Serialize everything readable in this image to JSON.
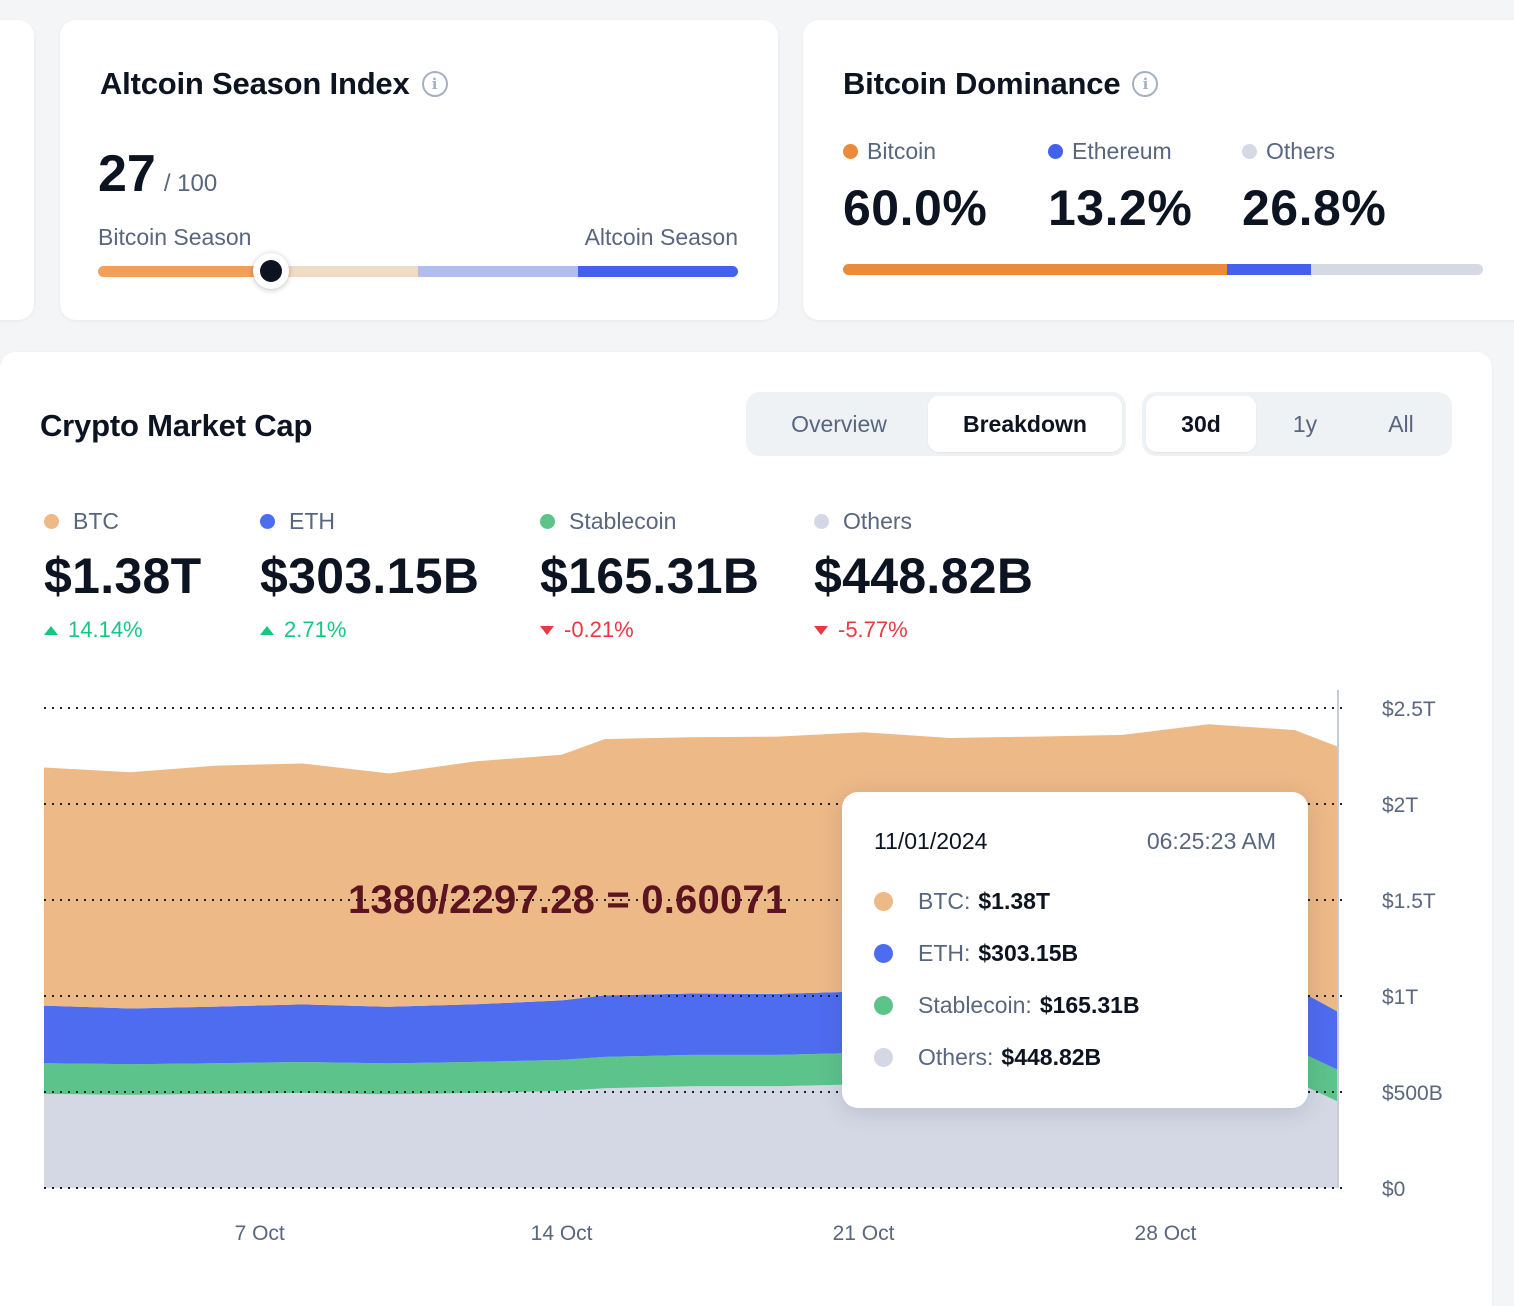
{
  "altcoin_season": {
    "title": "Altcoin Season Index",
    "value": "27",
    "max_label": "/ 100",
    "value_fraction": 0.27,
    "left_label": "Bitcoin Season",
    "right_label": "Altcoin Season",
    "bar_colors": [
      "#f0a05a",
      "#f0dcc4",
      "#b1bdf0",
      "#4361ee"
    ]
  },
  "dominance": {
    "title": "Bitcoin Dominance",
    "items": [
      {
        "label": "Bitcoin",
        "value": "60.0%",
        "color": "#ea8b3b",
        "fraction": 0.6
      },
      {
        "label": "Ethereum",
        "value": "13.2%",
        "color": "#4361ee",
        "fraction": 0.132
      },
      {
        "label": "Others",
        "value": "26.8%",
        "color": "#d4d9e3",
        "fraction": 0.268
      }
    ]
  },
  "market_cap": {
    "title": "Crypto Market Cap",
    "view_tabs": [
      {
        "label": "Overview",
        "active": false
      },
      {
        "label": "Breakdown",
        "active": true
      }
    ],
    "range_tabs": [
      {
        "label": "30d",
        "active": true
      },
      {
        "label": "1y",
        "active": false
      },
      {
        "label": "All",
        "active": false
      }
    ],
    "stats": [
      {
        "label": "BTC",
        "value": "$1.38T",
        "change": "14.14%",
        "direction": "up",
        "color": "#edb987"
      },
      {
        "label": "ETH",
        "value": "$303.15B",
        "change": "2.71%",
        "direction": "up",
        "color": "#4e6cf0"
      },
      {
        "label": "Stablecoin",
        "value": "$165.31B",
        "change": "-0.21%",
        "direction": "down",
        "color": "#5cc38a"
      },
      {
        "label": "Others",
        "value": "$448.82B",
        "change": "-5.77%",
        "direction": "down",
        "color": "#d4d8e5"
      }
    ],
    "annotation": "1380/2297.28 = 0.60071",
    "tooltip": {
      "date": "11/01/2024",
      "time": "06:25:23 AM",
      "rows": [
        {
          "label": "BTC:",
          "value": "$1.38T",
          "color": "#edb987"
        },
        {
          "label": "ETH:",
          "value": "$303.15B",
          "color": "#4e6cf0"
        },
        {
          "label": "Stablecoin:",
          "value": "$165.31B",
          "color": "#5cc38a"
        },
        {
          "label": "Others:",
          "value": "$448.82B",
          "color": "#d4d8e5"
        }
      ]
    }
  },
  "chart_data": {
    "type": "area",
    "stacked": true,
    "x": [
      "2024-10-02",
      "2024-10-04",
      "2024-10-06",
      "2024-10-08",
      "2024-10-10",
      "2024-10-12",
      "2024-10-14",
      "2024-10-15",
      "2024-10-17",
      "2024-10-19",
      "2024-10-21",
      "2024-10-23",
      "2024-10-25",
      "2024-10-27",
      "2024-10-29",
      "2024-10-31",
      "2024-11-01"
    ],
    "series": [
      {
        "name": "Others",
        "color": "#d4d8e5",
        "values": [
          490,
          485,
          490,
          495,
          488,
          495,
          505,
          520,
          530,
          530,
          540,
          535,
          530,
          535,
          545,
          555,
          450
        ]
      },
      {
        "name": "Stablecoin",
        "color": "#5cc38a",
        "values": [
          160,
          160,
          160,
          161,
          161,
          162,
          162,
          163,
          163,
          163,
          164,
          164,
          164,
          165,
          165,
          165,
          165
        ]
      },
      {
        "name": "ETH",
        "color": "#4e6cf0",
        "values": [
          300,
          290,
          295,
          300,
          295,
          300,
          310,
          320,
          320,
          318,
          320,
          310,
          312,
          310,
          315,
          320,
          303
        ]
      },
      {
        "name": "BTC",
        "color": "#edb987",
        "values": [
          1240,
          1230,
          1255,
          1255,
          1215,
          1265,
          1280,
          1335,
          1335,
          1340,
          1350,
          1335,
          1345,
          1350,
          1390,
          1345,
          1380
        ]
      }
    ],
    "y_ticks": [
      "$0",
      "$500B",
      "$1T",
      "$1.5T",
      "$2T",
      "$2.5T"
    ],
    "x_ticks": [
      "7 Oct",
      "14 Oct",
      "21 Oct",
      "28 Oct"
    ],
    "x_tick_dates": [
      "2024-10-07",
      "2024-10-14",
      "2024-10-21",
      "2024-10-28"
    ],
    "ylim": [
      0,
      2500
    ],
    "grid": "dotted horizontal"
  }
}
